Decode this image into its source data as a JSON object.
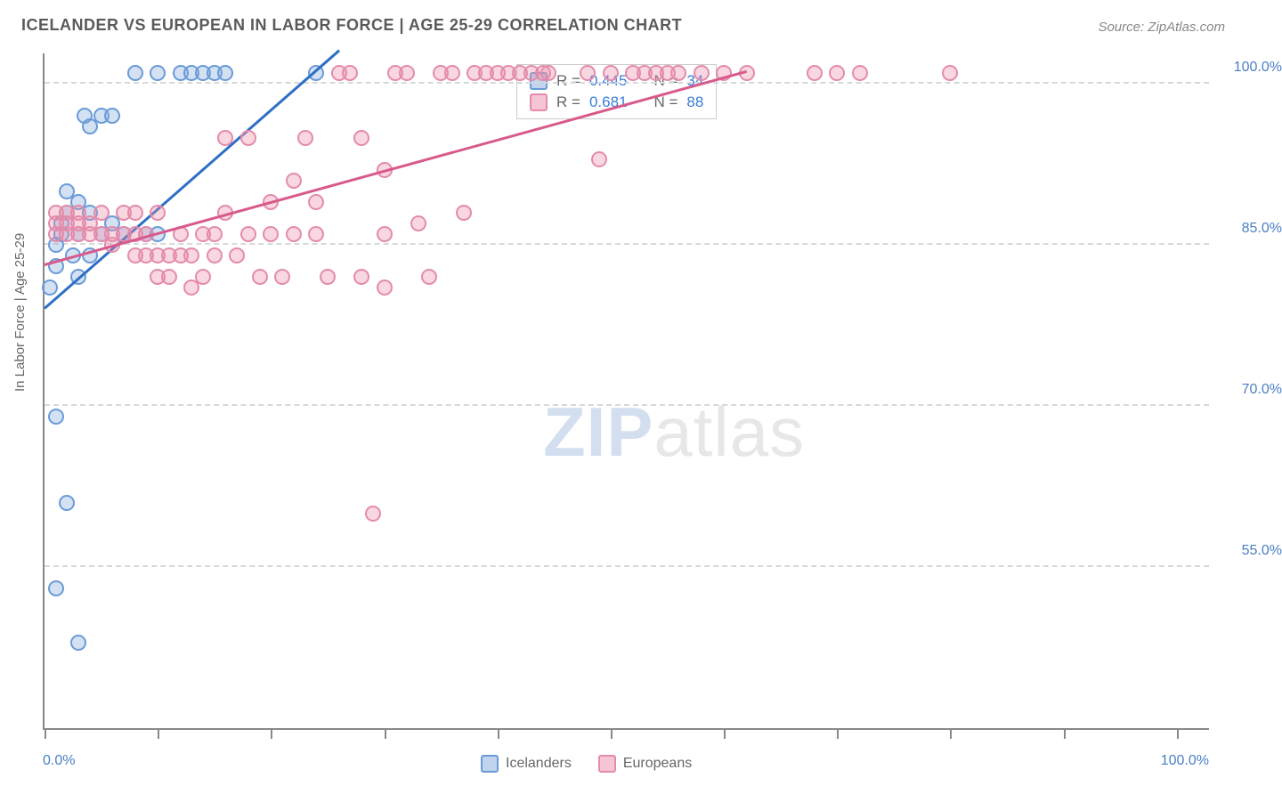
{
  "title": "ICELANDER VS EUROPEAN IN LABOR FORCE | AGE 25-29 CORRELATION CHART",
  "source_label": "Source: ZipAtlas.com",
  "watermark_a": "ZIP",
  "watermark_b": "atlas",
  "y_axis_title": "In Labor Force | Age 25-29",
  "chart": {
    "type": "scatter",
    "xlim": [
      0,
      103
    ],
    "ylim": [
      40,
      103
    ],
    "ytick_values": [
      55,
      70,
      85,
      100
    ],
    "ytick_labels": [
      "55.0%",
      "70.0%",
      "85.0%",
      "100.0%"
    ],
    "xtick_values": [
      0,
      10,
      20,
      30,
      40,
      50,
      60,
      70,
      80,
      90,
      100
    ],
    "xlabel_min": "0.0%",
    "xlabel_max": "100.0%",
    "background_color": "#ffffff",
    "grid_color": "#d8d8d8",
    "series": [
      {
        "name": "Icelanders",
        "color_fill": "rgba(130,170,220,0.35)",
        "color_stroke": "#6a9bd8",
        "trend_color": "#2e6fc4",
        "trend": {
          "x1": 0,
          "y1": 79,
          "x2": 26,
          "y2": 103
        },
        "stats": {
          "r_label": "R =",
          "r_value": "0.445",
          "n_label": "N =",
          "n_value": "34"
        },
        "points": [
          {
            "x": 0.5,
            "y": 81
          },
          {
            "x": 1,
            "y": 83
          },
          {
            "x": 1,
            "y": 85
          },
          {
            "x": 1.5,
            "y": 86
          },
          {
            "x": 1.5,
            "y": 87
          },
          {
            "x": 2,
            "y": 88
          },
          {
            "x": 2,
            "y": 90
          },
          {
            "x": 3,
            "y": 89
          },
          {
            "x": 3,
            "y": 86
          },
          {
            "x": 3.5,
            "y": 97
          },
          {
            "x": 4,
            "y": 88
          },
          {
            "x": 5,
            "y": 86
          },
          {
            "x": 5,
            "y": 97
          },
          {
            "x": 6,
            "y": 97
          },
          {
            "x": 6,
            "y": 87
          },
          {
            "x": 7,
            "y": 86
          },
          {
            "x": 8,
            "y": 101
          },
          {
            "x": 9,
            "y": 86
          },
          {
            "x": 10,
            "y": 86
          },
          {
            "x": 10,
            "y": 101
          },
          {
            "x": 12,
            "y": 101
          },
          {
            "x": 13,
            "y": 101
          },
          {
            "x": 14,
            "y": 101
          },
          {
            "x": 15,
            "y": 101
          },
          {
            "x": 16,
            "y": 101
          },
          {
            "x": 24,
            "y": 101
          },
          {
            "x": 4,
            "y": 96
          },
          {
            "x": 1,
            "y": 69
          },
          {
            "x": 2,
            "y": 61
          },
          {
            "x": 3,
            "y": 48
          },
          {
            "x": 1,
            "y": 53
          },
          {
            "x": 4,
            "y": 84
          },
          {
            "x": 2.5,
            "y": 84
          },
          {
            "x": 3,
            "y": 82
          }
        ]
      },
      {
        "name": "Europeans",
        "color_fill": "rgba(235,140,170,0.35)",
        "color_stroke": "#e48bab",
        "trend_color": "#d85a8c",
        "trend": {
          "x1": 0,
          "y1": 83,
          "x2": 62,
          "y2": 101
        },
        "stats": {
          "r_label": "R =",
          "r_value": "0.681",
          "n_label": "N =",
          "n_value": "88"
        },
        "points": [
          {
            "x": 1,
            "y": 86
          },
          {
            "x": 1,
            "y": 87
          },
          {
            "x": 1,
            "y": 88
          },
          {
            "x": 2,
            "y": 86
          },
          {
            "x": 2,
            "y": 87
          },
          {
            "x": 2,
            "y": 88
          },
          {
            "x": 3,
            "y": 86
          },
          {
            "x": 3,
            "y": 87
          },
          {
            "x": 3,
            "y": 88
          },
          {
            "x": 4,
            "y": 86
          },
          {
            "x": 4,
            "y": 87
          },
          {
            "x": 5,
            "y": 86
          },
          {
            "x": 5,
            "y": 88
          },
          {
            "x": 6,
            "y": 85
          },
          {
            "x": 6,
            "y": 86
          },
          {
            "x": 7,
            "y": 88
          },
          {
            "x": 7,
            "y": 86
          },
          {
            "x": 8,
            "y": 84
          },
          {
            "x": 8,
            "y": 86
          },
          {
            "x": 8,
            "y": 88
          },
          {
            "x": 9,
            "y": 84
          },
          {
            "x": 9,
            "y": 86
          },
          {
            "x": 10,
            "y": 82
          },
          {
            "x": 10,
            "y": 84
          },
          {
            "x": 10,
            "y": 88
          },
          {
            "x": 11,
            "y": 82
          },
          {
            "x": 11,
            "y": 84
          },
          {
            "x": 12,
            "y": 84
          },
          {
            "x": 12,
            "y": 86
          },
          {
            "x": 13,
            "y": 81
          },
          {
            "x": 13,
            "y": 84
          },
          {
            "x": 14,
            "y": 82
          },
          {
            "x": 14,
            "y": 86
          },
          {
            "x": 15,
            "y": 84
          },
          {
            "x": 15,
            "y": 86
          },
          {
            "x": 16,
            "y": 95
          },
          {
            "x": 16,
            "y": 88
          },
          {
            "x": 17,
            "y": 84
          },
          {
            "x": 18,
            "y": 95
          },
          {
            "x": 18,
            "y": 86
          },
          {
            "x": 19,
            "y": 82
          },
          {
            "x": 20,
            "y": 89
          },
          {
            "x": 20,
            "y": 86
          },
          {
            "x": 21,
            "y": 82
          },
          {
            "x": 22,
            "y": 91
          },
          {
            "x": 22,
            "y": 86
          },
          {
            "x": 23,
            "y": 95
          },
          {
            "x": 24,
            "y": 89
          },
          {
            "x": 24,
            "y": 86
          },
          {
            "x": 25,
            "y": 82
          },
          {
            "x": 26,
            "y": 101
          },
          {
            "x": 27,
            "y": 101
          },
          {
            "x": 28,
            "y": 95
          },
          {
            "x": 28,
            "y": 82
          },
          {
            "x": 29,
            "y": 60
          },
          {
            "x": 30,
            "y": 92
          },
          {
            "x": 30,
            "y": 86
          },
          {
            "x": 30,
            "y": 81
          },
          {
            "x": 31,
            "y": 101
          },
          {
            "x": 32,
            "y": 101
          },
          {
            "x": 33,
            "y": 87
          },
          {
            "x": 34,
            "y": 82
          },
          {
            "x": 35,
            "y": 101
          },
          {
            "x": 36,
            "y": 101
          },
          {
            "x": 37,
            "y": 88
          },
          {
            "x": 38,
            "y": 101
          },
          {
            "x": 39,
            "y": 101
          },
          {
            "x": 40,
            "y": 101
          },
          {
            "x": 41,
            "y": 101
          },
          {
            "x": 42,
            "y": 101
          },
          {
            "x": 43,
            "y": 101
          },
          {
            "x": 44,
            "y": 101
          },
          {
            "x": 44.5,
            "y": 101
          },
          {
            "x": 48,
            "y": 101
          },
          {
            "x": 49,
            "y": 93
          },
          {
            "x": 50,
            "y": 101
          },
          {
            "x": 52,
            "y": 101
          },
          {
            "x": 53,
            "y": 101
          },
          {
            "x": 54,
            "y": 101
          },
          {
            "x": 55,
            "y": 101
          },
          {
            "x": 56,
            "y": 101
          },
          {
            "x": 58,
            "y": 101
          },
          {
            "x": 60,
            "y": 101
          },
          {
            "x": 62,
            "y": 101
          },
          {
            "x": 68,
            "y": 101
          },
          {
            "x": 70,
            "y": 101
          },
          {
            "x": 72,
            "y": 101
          },
          {
            "x": 80,
            "y": 101
          }
        ]
      }
    ]
  },
  "legend": {
    "series_a_label": "Icelanders",
    "series_b_label": "Europeans"
  }
}
